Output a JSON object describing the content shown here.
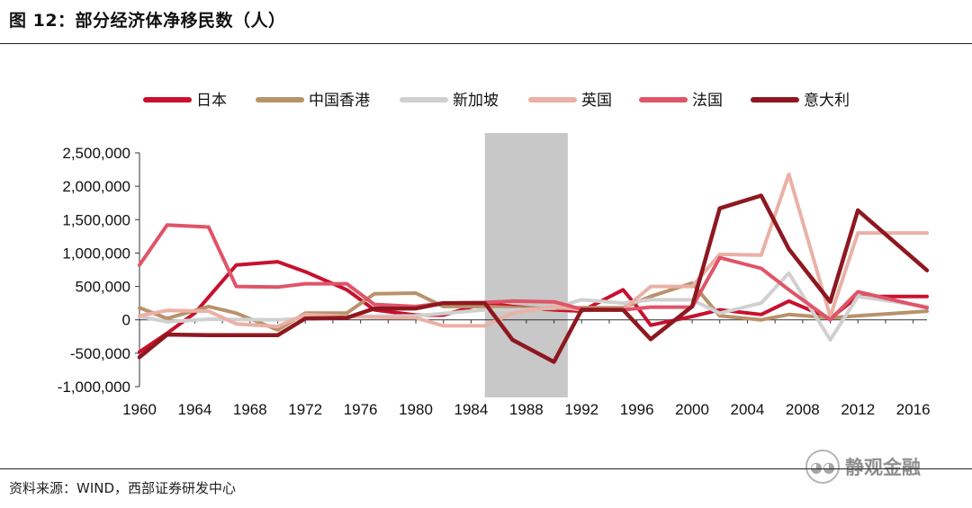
{
  "header": {
    "title": "图 12：部分经济体净移民数（人）"
  },
  "footer": {
    "source": "资料来源：WIND，西部证券研发中心"
  },
  "watermark": {
    "text": "静观金融",
    "icon": "wechat-icon"
  },
  "chart_data": {
    "type": "line",
    "title": "",
    "xlabel": "",
    "ylabel": "",
    "ylim": [
      -1000000,
      2500000
    ],
    "xlim": [
      1960,
      2017
    ],
    "xticks": [
      1960,
      1964,
      1968,
      1972,
      1976,
      1980,
      1984,
      1988,
      1992,
      1996,
      2000,
      2004,
      2008,
      2012,
      2016
    ],
    "yticks": [
      -1000000,
      -500000,
      0,
      500000,
      1000000,
      1500000,
      2000000,
      2500000
    ],
    "ytick_labels": [
      "-1,000,000",
      "-500,000",
      "0",
      "500,000",
      "1,000,000",
      "1,500,000",
      "2,000,000",
      "2,500,000"
    ],
    "legend_position": "top",
    "grid": false,
    "shaded_region": {
      "from": 1985,
      "to": 1991,
      "color": "#c8c8c8"
    },
    "series": [
      {
        "name": "日本",
        "color": "#c8102e",
        "width": 4,
        "x": [
          1960,
          1962,
          1964,
          1967,
          1970,
          1972,
          1975,
          1977,
          1980,
          1982,
          1985,
          1987,
          1990,
          1992,
          1995,
          1996,
          1997,
          2000,
          2002,
          2005,
          2007,
          2010,
          2012,
          2017
        ],
        "y": [
          -480000,
          -200000,
          100000,
          820000,
          870000,
          720000,
          450000,
          150000,
          70000,
          70000,
          250000,
          200000,
          150000,
          130000,
          450000,
          200000,
          -80000,
          50000,
          150000,
          80000,
          280000,
          20000,
          350000,
          350000
        ]
      },
      {
        "name": "中国香港",
        "color": "#b8926a",
        "width": 4,
        "x": [
          1960,
          1962,
          1965,
          1967,
          1970,
          1972,
          1975,
          1977,
          1980,
          1982,
          1985,
          1987,
          1990,
          1992,
          1995,
          1997,
          2000,
          2002,
          2005,
          2007,
          2010,
          2012,
          2017
        ],
        "y": [
          180000,
          20000,
          200000,
          100000,
          -150000,
          100000,
          100000,
          390000,
          400000,
          200000,
          200000,
          180000,
          170000,
          180000,
          180000,
          350000,
          550000,
          60000,
          0,
          80000,
          30000,
          60000,
          130000
        ]
      },
      {
        "name": "新加坡",
        "color": "#d0d0d0",
        "width": 4,
        "x": [
          1960,
          1962,
          1965,
          1970,
          1975,
          1980,
          1985,
          1988,
          1990,
          1992,
          1995,
          1997,
          2000,
          2002,
          2005,
          2007,
          2010,
          2012,
          2017
        ],
        "y": [
          50000,
          -30000,
          10000,
          0,
          50000,
          60000,
          150000,
          150000,
          180000,
          300000,
          250000,
          300000,
          300000,
          100000,
          250000,
          700000,
          -300000,
          350000,
          200000
        ]
      },
      {
        "name": "英国",
        "color": "#eab0a6",
        "width": 4,
        "x": [
          1960,
          1962,
          1965,
          1967,
          1970,
          1972,
          1975,
          1977,
          1980,
          1982,
          1985,
          1987,
          1990,
          1992,
          1995,
          1997,
          2000,
          2002,
          2005,
          2007,
          2010,
          2012,
          2017
        ],
        "y": [
          60000,
          140000,
          130000,
          -60000,
          -100000,
          80000,
          50000,
          40000,
          30000,
          -90000,
          -90000,
          100000,
          200000,
          150000,
          150000,
          500000,
          500000,
          980000,
          970000,
          2180000,
          50000,
          1300000,
          1300000
        ]
      },
      {
        "name": "法国",
        "color": "#e05468",
        "width": 4,
        "x": [
          1960,
          1962,
          1965,
          1967,
          1970,
          1972,
          1975,
          1977,
          1980,
          1982,
          1985,
          1987,
          1990,
          1992,
          1995,
          1997,
          2000,
          2002,
          2005,
          2007,
          2010,
          2012,
          2017
        ],
        "y": [
          820000,
          1420000,
          1390000,
          500000,
          490000,
          540000,
          540000,
          230000,
          200000,
          250000,
          260000,
          280000,
          270000,
          160000,
          150000,
          190000,
          190000,
          930000,
          770000,
          450000,
          0,
          420000,
          180000
        ]
      },
      {
        "name": "意大利",
        "color": "#8e1820",
        "width": 4.5,
        "x": [
          1960,
          1962,
          1965,
          1970,
          1972,
          1975,
          1977,
          1980,
          1982,
          1985,
          1987,
          1990,
          1992,
          1995,
          1997,
          2000,
          2002,
          2005,
          2007,
          2010,
          2012,
          2017
        ],
        "y": [
          -560000,
          -220000,
          -230000,
          -230000,
          20000,
          30000,
          170000,
          170000,
          250000,
          250000,
          -300000,
          -630000,
          150000,
          150000,
          -290000,
          200000,
          1670000,
          1860000,
          1060000,
          270000,
          1640000,
          740000
        ]
      }
    ]
  }
}
